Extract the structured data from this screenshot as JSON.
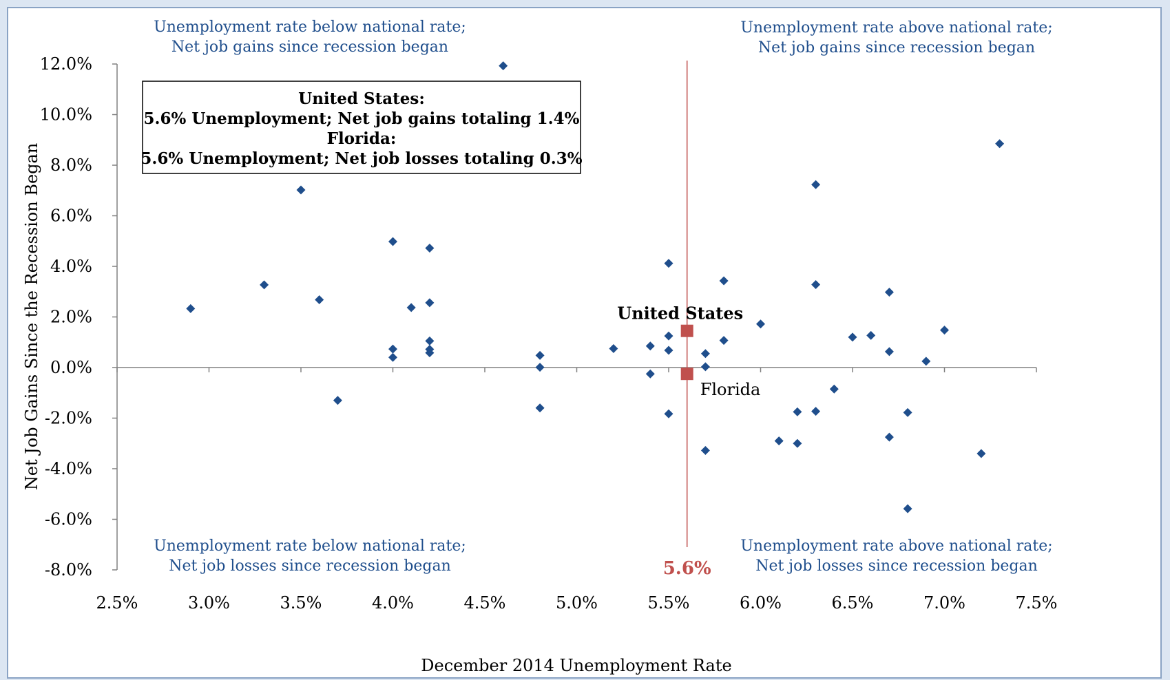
{
  "colors": {
    "point": "#1f4e8c",
    "highlight": "#c0504d",
    "annotation_text": "#1f4e8c",
    "axis": "#808080",
    "background_outer": "#dce6f2",
    "frame_border": "#8aa3c4"
  },
  "chart_data": {
    "type": "scatter",
    "xlabel": "December 2014 Unemployment Rate",
    "ylabel": "Net Job Gains Since the Recession Began",
    "xlim": [
      0.025,
      0.075
    ],
    "ylim": [
      -0.08,
      0.12
    ],
    "grid": false,
    "x_ticks": [
      {
        "value": 0.025,
        "label": "2.5%"
      },
      {
        "value": 0.03,
        "label": "3.0%"
      },
      {
        "value": 0.035,
        "label": "3.5%"
      },
      {
        "value": 0.04,
        "label": "4.0%"
      },
      {
        "value": 0.045,
        "label": "4.5%"
      },
      {
        "value": 0.05,
        "label": "5.0%"
      },
      {
        "value": 0.055,
        "label": "5.5%"
      },
      {
        "value": 0.06,
        "label": "6.0%"
      },
      {
        "value": 0.065,
        "label": "6.5%"
      },
      {
        "value": 0.07,
        "label": "7.0%"
      },
      {
        "value": 0.075,
        "label": "7.5%"
      }
    ],
    "y_ticks": [
      {
        "value": 0.12,
        "label": "12.0%"
      },
      {
        "value": 0.1,
        "label": "10.0%"
      },
      {
        "value": 0.08,
        "label": "8.0%"
      },
      {
        "value": 0.06,
        "label": "6.0%"
      },
      {
        "value": 0.04,
        "label": "4.0%"
      },
      {
        "value": 0.02,
        "label": "2.0%"
      },
      {
        "value": 0.0,
        "label": "0.0%"
      },
      {
        "value": -0.02,
        "label": "-2.0%"
      },
      {
        "value": -0.04,
        "label": "-4.0%"
      },
      {
        "value": -0.06,
        "label": "-6.0%"
      },
      {
        "value": -0.08,
        "label": "-8.0%"
      }
    ],
    "series": [
      {
        "points": [
          [
            0.029,
            0.0233
          ],
          [
            0.033,
            0.0327
          ],
          [
            0.035,
            0.0702
          ],
          [
            0.036,
            0.0268
          ],
          [
            0.037,
            -0.013
          ],
          [
            0.04,
            0.0498
          ],
          [
            0.04,
            0.0073
          ],
          [
            0.04,
            0.004
          ],
          [
            0.041,
            0.0237
          ],
          [
            0.042,
            0.0472
          ],
          [
            0.042,
            0.0256
          ],
          [
            0.042,
            0.0105
          ],
          [
            0.042,
            0.0072
          ],
          [
            0.042,
            0.0058
          ],
          [
            0.046,
            0.1193
          ],
          [
            0.048,
            0.0048
          ],
          [
            0.048,
            0.0001
          ],
          [
            0.048,
            -0.016
          ],
          [
            0.052,
            0.0075
          ],
          [
            0.054,
            0.0085
          ],
          [
            0.054,
            -0.0025
          ],
          [
            0.055,
            0.0412
          ],
          [
            0.055,
            0.0125
          ],
          [
            0.055,
            0.0068
          ],
          [
            0.055,
            -0.0183
          ],
          [
            0.057,
            0.0055
          ],
          [
            0.057,
            0.0003
          ],
          [
            0.057,
            -0.0328
          ],
          [
            0.058,
            0.0343
          ],
          [
            0.058,
            0.0107
          ],
          [
            0.06,
            0.0172
          ],
          [
            0.061,
            -0.029
          ],
          [
            0.062,
            -0.0175
          ],
          [
            0.062,
            -0.03
          ],
          [
            0.063,
            0.0723
          ],
          [
            0.063,
            0.0328
          ],
          [
            0.063,
            -0.0173
          ],
          [
            0.064,
            -0.0085
          ],
          [
            0.065,
            0.012
          ],
          [
            0.066,
            0.0127
          ],
          [
            0.067,
            0.0298
          ],
          [
            0.067,
            0.0063
          ],
          [
            0.067,
            -0.0275
          ],
          [
            0.068,
            -0.0178
          ],
          [
            0.068,
            -0.0558
          ],
          [
            0.069,
            0.0025
          ],
          [
            0.07,
            0.0148
          ],
          [
            0.072,
            -0.034
          ],
          [
            0.073,
            0.0885
          ]
        ]
      }
    ],
    "highlighted": [
      {
        "name": "United States",
        "x": 0.056,
        "y": 0.0145
      },
      {
        "name": "Florida",
        "x": 0.056,
        "y": -0.0025
      }
    ],
    "reference_line": {
      "x": 0.056,
      "label": "5.6%"
    },
    "info_box": [
      "United States:",
      "5.6% Unemployment; Net job gains totaling 1.4%",
      "Florida:",
      "5.6% Unemployment; Net job losses totaling 0.3%"
    ],
    "quadrant_labels": {
      "top_left": [
        "Unemployment rate below national rate;",
        "Net job gains since recession began"
      ],
      "top_right": [
        "Unemployment rate above national rate;",
        "Net job gains since recession began"
      ],
      "bottom_left": [
        "Unemployment rate below national rate;",
        "Net job losses since recession began"
      ],
      "bottom_right": [
        "Unemployment rate above national rate;",
        "Net job losses since recession began"
      ]
    }
  }
}
